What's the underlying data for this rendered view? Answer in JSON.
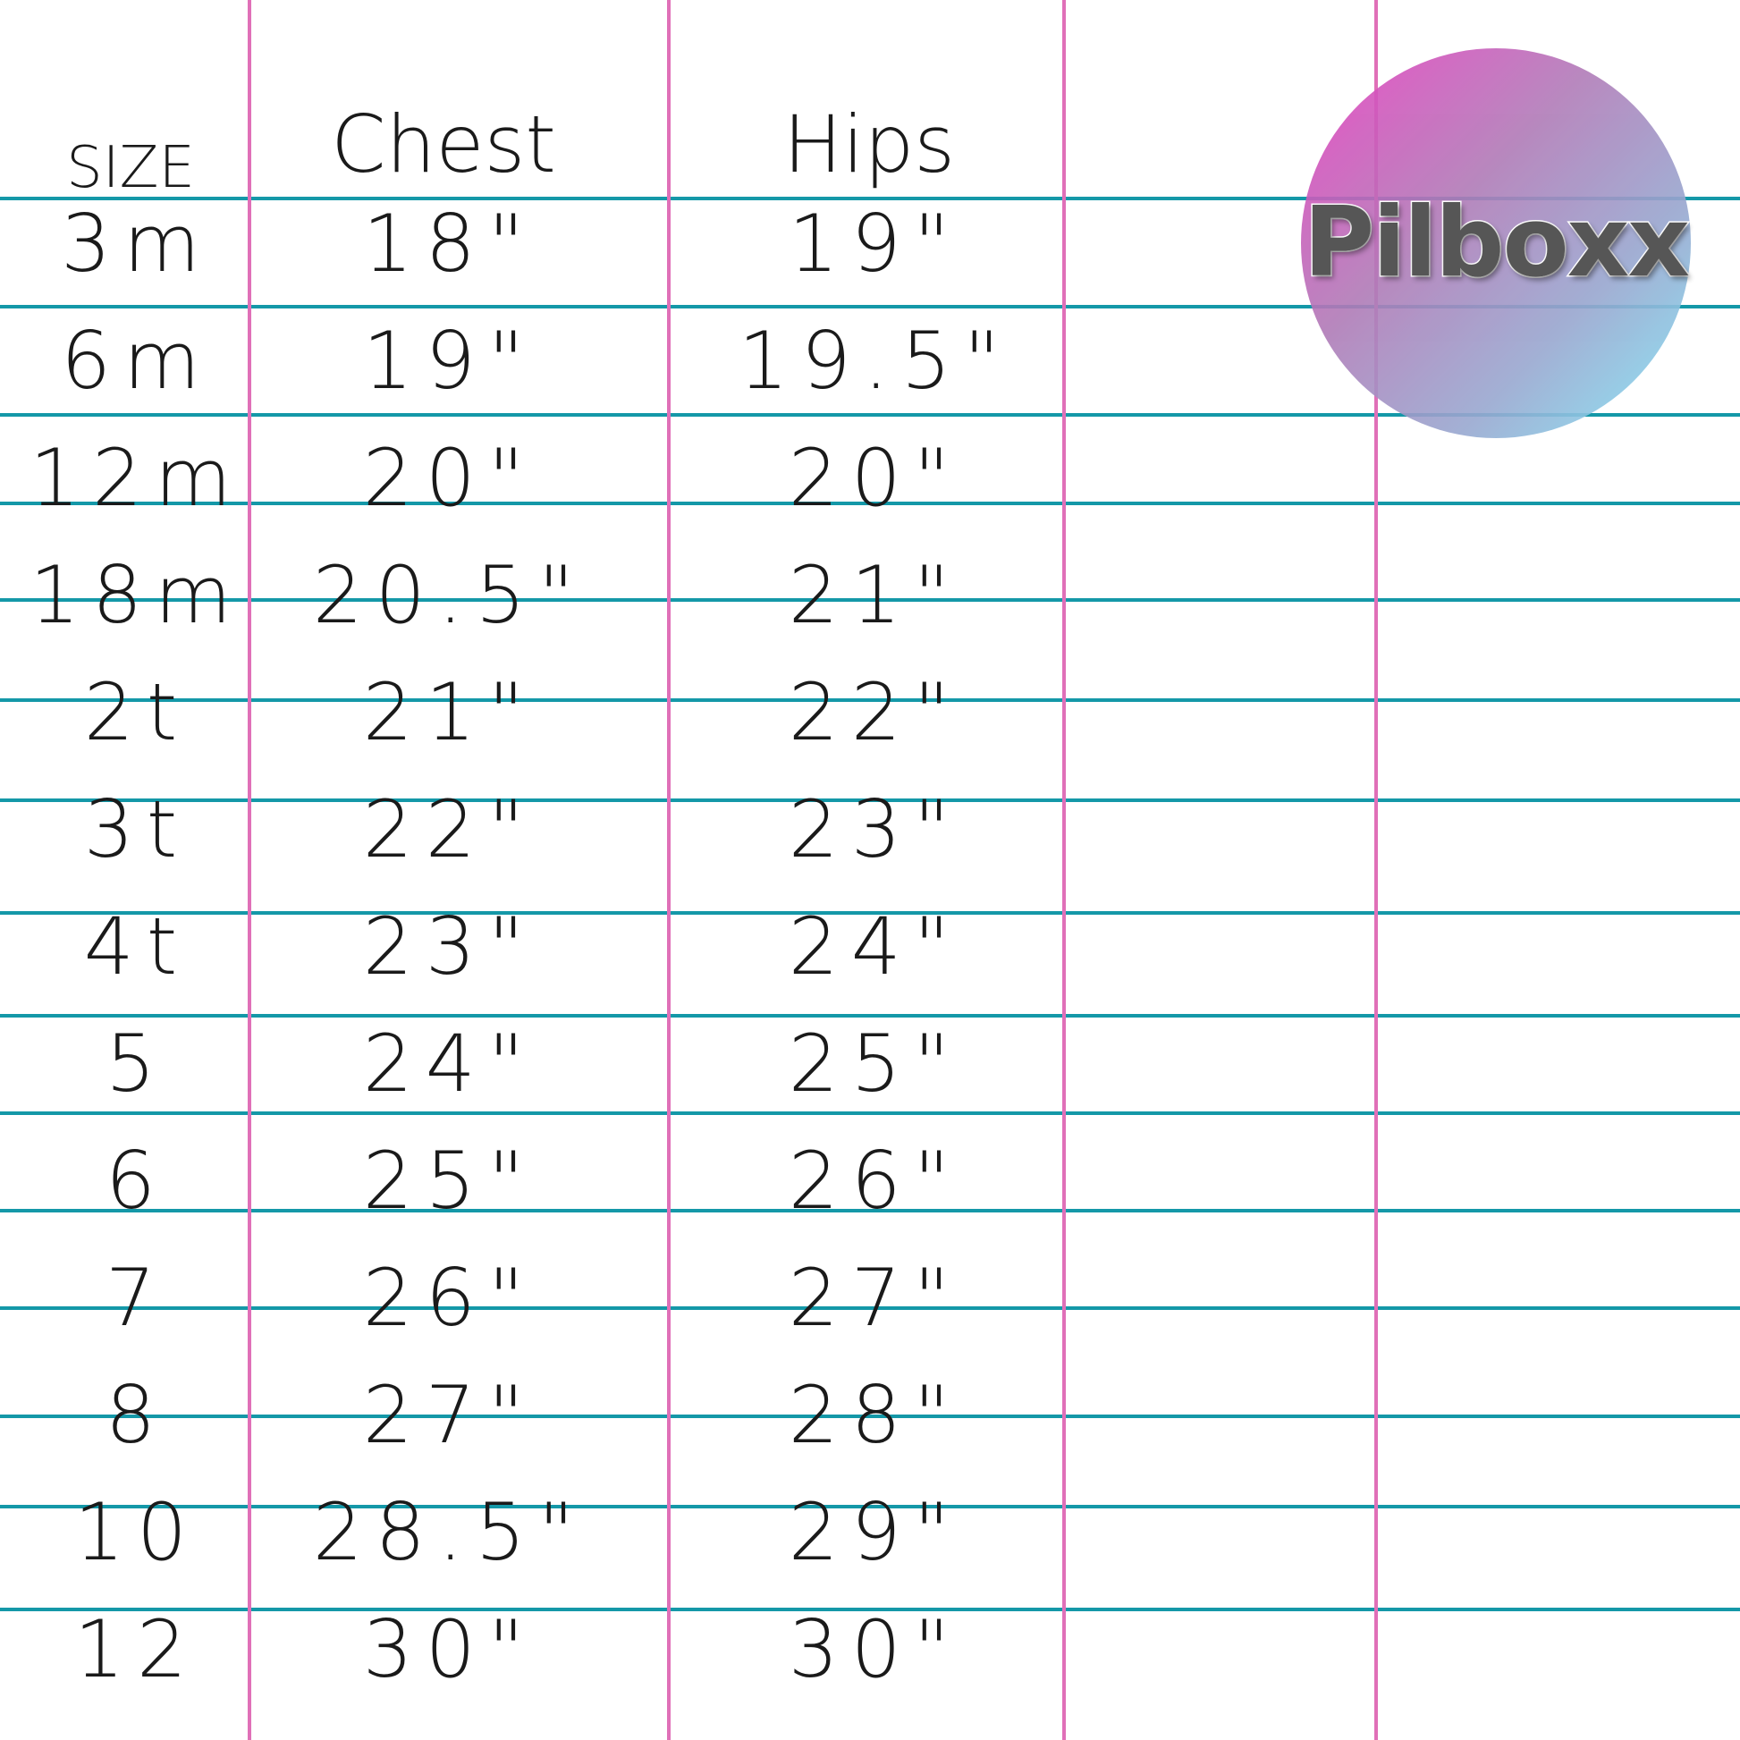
{
  "header": {
    "size": "SIZE",
    "chest": "Chest",
    "hips": "Hips"
  },
  "rows": [
    {
      "size": "3m",
      "chest": "18\"",
      "hips": "19\""
    },
    {
      "size": "6m",
      "chest": "19\"",
      "hips": "19.5\""
    },
    {
      "size": "12m",
      "chest": "20\"",
      "hips": "20\""
    },
    {
      "size": "18m",
      "chest": "20.5\"",
      "hips": "21\""
    },
    {
      "size": "2t",
      "chest": "21\"",
      "hips": "22\""
    },
    {
      "size": "3t",
      "chest": "22\"",
      "hips": "23\""
    },
    {
      "size": "4t",
      "chest": "23\"",
      "hips": "24\""
    },
    {
      "size": "5",
      "chest": "24\"",
      "hips": "25\""
    },
    {
      "size": "6",
      "chest": "25\"",
      "hips": "26\""
    },
    {
      "size": "7",
      "chest": "26\"",
      "hips": "27\""
    },
    {
      "size": "8",
      "chest": "27\"",
      "hips": "28\""
    },
    {
      "size": "10",
      "chest": "28.5\"",
      "hips": "29\""
    },
    {
      "size": "12",
      "chest": "30\"",
      "hips": "30\""
    }
  ],
  "logo": {
    "text": "Pilboxx"
  },
  "colors": {
    "row_lines": "#1498a8",
    "column_lines": "#e070b8"
  }
}
